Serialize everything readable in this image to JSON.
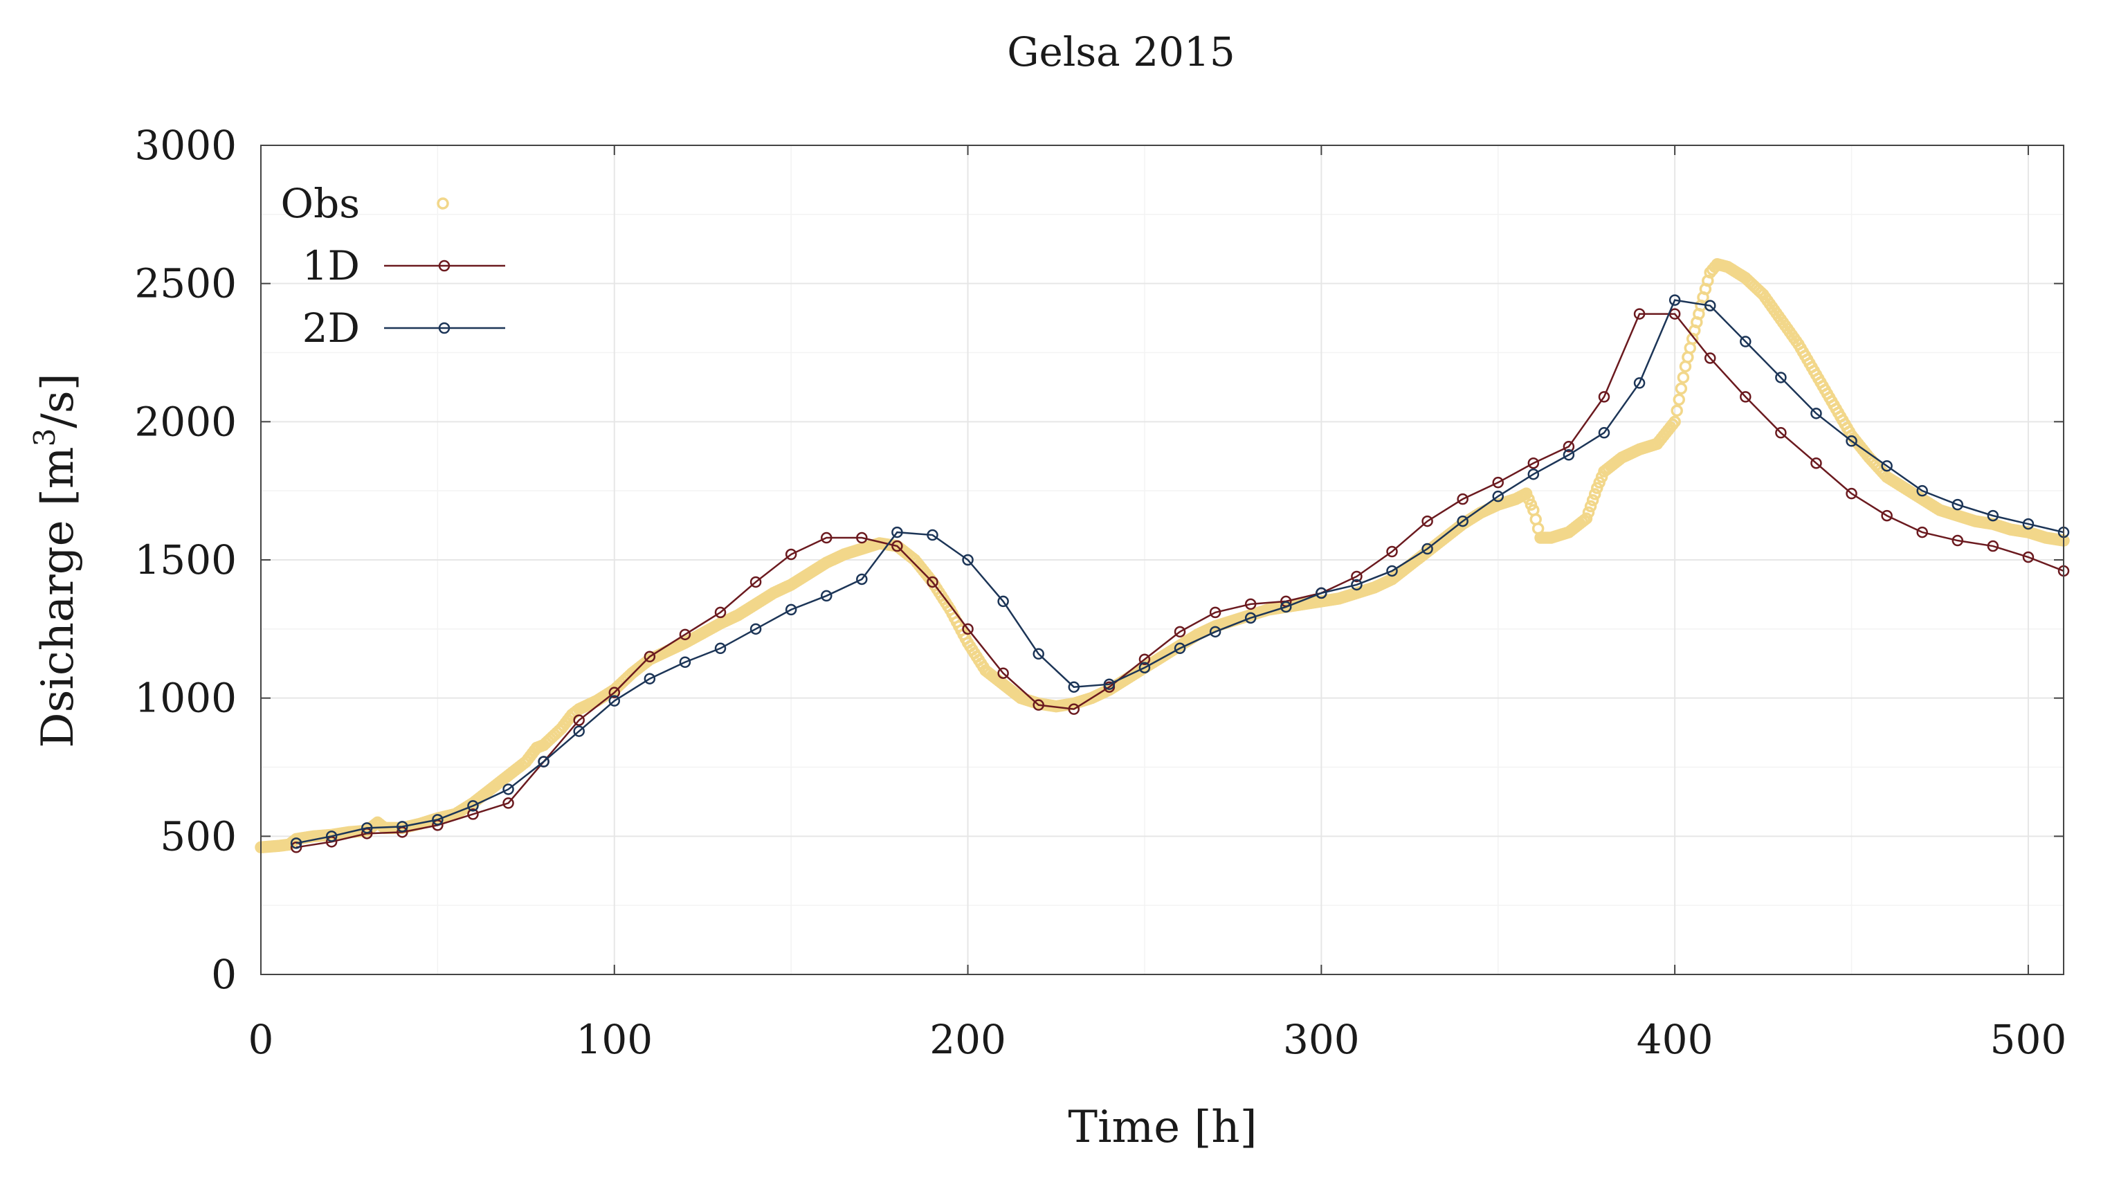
{
  "chart_data": {
    "type": "line",
    "title": "Gelsa 2015",
    "xlabel": "Time [h]",
    "ylabel_main": "Dsicharge [m",
    "ylabel_sup": "3",
    "ylabel_end": "/s]",
    "xlim": [
      0,
      510
    ],
    "ylim": [
      0,
      3000
    ],
    "xticks": [
      0,
      100,
      200,
      300,
      400,
      500
    ],
    "yticks": [
      0,
      500,
      1000,
      1500,
      2000,
      2500,
      3000
    ],
    "grid": true,
    "legend_position": "top-left",
    "colors": {
      "obs": "#f2d78a",
      "d1": "#6b1a1f",
      "d2": "#1c3557",
      "grid": "#e6e6e6",
      "axis": "#444444"
    },
    "series": [
      {
        "name": "Obs",
        "style": "markers",
        "x": [
          0,
          5,
          8,
          10,
          15,
          20,
          25,
          30,
          33,
          35,
          40,
          45,
          50,
          55,
          60,
          65,
          70,
          75,
          78,
          80,
          85,
          88,
          90,
          95,
          100,
          105,
          110,
          115,
          120,
          125,
          130,
          135,
          140,
          145,
          150,
          155,
          160,
          165,
          170,
          175,
          180,
          185,
          190,
          195,
          200,
          205,
          210,
          215,
          220,
          225,
          230,
          235,
          240,
          245,
          250,
          255,
          260,
          265,
          270,
          275,
          280,
          285,
          290,
          295,
          300,
          305,
          310,
          315,
          320,
          325,
          330,
          335,
          340,
          345,
          350,
          355,
          358,
          360,
          362,
          365,
          370,
          375,
          378,
          380,
          385,
          390,
          395,
          400,
          403,
          405,
          408,
          410,
          412,
          415,
          420,
          425,
          430,
          435,
          440,
          445,
          450,
          455,
          460,
          465,
          470,
          475,
          480,
          485,
          490,
          495,
          500,
          505,
          510
        ],
        "y": [
          460,
          465,
          470,
          490,
          500,
          505,
          515,
          520,
          550,
          530,
          530,
          545,
          565,
          580,
          620,
          670,
          720,
          770,
          820,
          830,
          890,
          940,
          960,
          990,
          1030,
          1090,
          1140,
          1170,
          1200,
          1235,
          1270,
          1300,
          1340,
          1380,
          1410,
          1450,
          1490,
          1520,
          1540,
          1560,
          1550,
          1500,
          1420,
          1320,
          1200,
          1100,
          1050,
          1000,
          980,
          970,
          980,
          1000,
          1030,
          1070,
          1110,
          1150,
          1190,
          1230,
          1260,
          1280,
          1300,
          1320,
          1330,
          1340,
          1350,
          1360,
          1380,
          1400,
          1430,
          1480,
          1530,
          1580,
          1630,
          1670,
          1700,
          1720,
          1740,
          1680,
          1580,
          1580,
          1600,
          1650,
          1760,
          1820,
          1870,
          1900,
          1920,
          2000,
          2200,
          2300,
          2450,
          2540,
          2570,
          2560,
          2520,
          2460,
          2370,
          2280,
          2170,
          2060,
          1950,
          1870,
          1800,
          1760,
          1720,
          1680,
          1660,
          1640,
          1630,
          1610,
          1600,
          1580,
          1570
        ]
      },
      {
        "name": "1D",
        "style": "line-markers",
        "x": [
          10,
          20,
          30,
          40,
          50,
          60,
          70,
          80,
          90,
          100,
          110,
          120,
          130,
          140,
          150,
          160,
          170,
          180,
          190,
          200,
          210,
          220,
          230,
          240,
          250,
          260,
          270,
          280,
          290,
          300,
          310,
          320,
          330,
          340,
          350,
          360,
          370,
          380,
          390,
          400,
          410,
          420,
          430,
          440,
          450,
          460,
          470,
          480,
          490,
          500,
          510
        ],
        "y": [
          460,
          480,
          510,
          515,
          540,
          580,
          620,
          770,
          920,
          1020,
          1150,
          1230,
          1310,
          1420,
          1520,
          1580,
          1580,
          1550,
          1420,
          1250,
          1090,
          975,
          960,
          1040,
          1140,
          1240,
          1310,
          1340,
          1350,
          1380,
          1440,
          1530,
          1640,
          1720,
          1780,
          1850,
          1910,
          2090,
          2390,
          2390,
          2230,
          2090,
          1960,
          1850,
          1740,
          1660,
          1600,
          1570,
          1550,
          1510,
          1460
        ]
      },
      {
        "name": "2D",
        "style": "line-markers",
        "x": [
          10,
          20,
          30,
          40,
          50,
          60,
          70,
          80,
          90,
          100,
          110,
          120,
          130,
          140,
          150,
          160,
          170,
          180,
          190,
          200,
          210,
          220,
          230,
          240,
          250,
          260,
          270,
          280,
          290,
          300,
          310,
          320,
          330,
          340,
          350,
          360,
          370,
          380,
          390,
          400,
          410,
          420,
          430,
          440,
          450,
          460,
          470,
          480,
          490,
          500,
          510
        ],
        "y": [
          475,
          500,
          530,
          535,
          560,
          610,
          670,
          770,
          880,
          990,
          1070,
          1130,
          1180,
          1250,
          1320,
          1370,
          1430,
          1600,
          1590,
          1500,
          1350,
          1160,
          1040,
          1050,
          1110,
          1180,
          1240,
          1290,
          1330,
          1380,
          1410,
          1460,
          1540,
          1640,
          1730,
          1810,
          1880,
          1960,
          2140,
          2440,
          2420,
          2290,
          2160,
          2030,
          1930,
          1840,
          1750,
          1700,
          1660,
          1630,
          1600
        ]
      }
    ]
  }
}
